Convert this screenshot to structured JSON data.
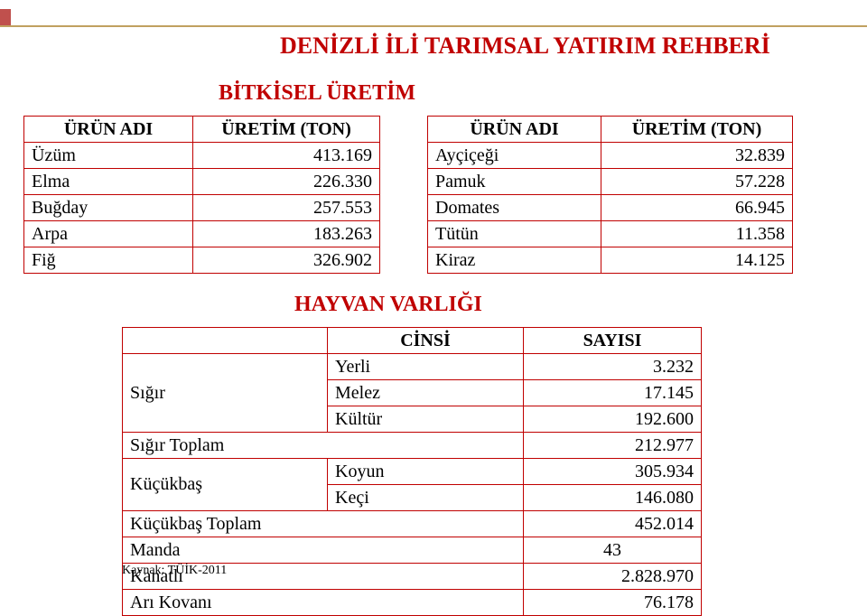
{
  "doc_title": "DENİZLİ İLİ TARIMSAL YATIRIM REHBERİ",
  "subtitle": "BİTKİSEL ÜRETİM",
  "colors": {
    "accent_red": "#c00000",
    "border": "#c00000",
    "stripe": "#c0504d",
    "line": "#c0a060",
    "bg": "#ffffff",
    "text": "#000000"
  },
  "left_table": {
    "headers": [
      "ÜRÜN ADI",
      "ÜRETİM (TON)"
    ],
    "rows": [
      [
        "Üzüm",
        "413.169"
      ],
      [
        "Elma",
        "226.330"
      ],
      [
        "Buğday",
        "257.553"
      ],
      [
        "Arpa",
        "183.263"
      ],
      [
        "Fiğ",
        "326.902"
      ]
    ]
  },
  "right_table": {
    "headers": [
      "ÜRÜN ADI",
      "ÜRETİM (TON)"
    ],
    "rows": [
      [
        "Ayçiçeği",
        "32.839"
      ],
      [
        "Pamuk",
        "57.228"
      ],
      [
        "Domates",
        "66.945"
      ],
      [
        "Tütün",
        "11.358"
      ],
      [
        "Kiraz",
        "14.125"
      ]
    ]
  },
  "mid_title": "HAYVAN VARLIĞI",
  "bottom_table": {
    "header_b": "CİNSİ",
    "header_c": "SAYISI",
    "sigir_label": "Sığır",
    "sigir_rows": [
      [
        "Yerli",
        "3.232"
      ],
      [
        "Melez",
        "17.145"
      ],
      [
        "Kültür",
        "192.600"
      ]
    ],
    "sigir_total_label": "Sığır Toplam",
    "sigir_total_val": "212.977",
    "kucukbas_label": "Küçükbaş",
    "kucukbas_rows": [
      [
        "Koyun",
        "305.934"
      ],
      [
        "Keçi",
        "146.080"
      ]
    ],
    "kucukbas_total_label": "Küçükbaş Toplam",
    "kucukbas_total_val": "452.014",
    "manda_label": "Manda",
    "manda_val": "43",
    "kanatli_label": "Kanatlı",
    "kanatli_val": "2.828.970",
    "ari_label": "Arı Kovanı",
    "ari_val": "76.178"
  },
  "source": "Kaynak: TÜİK-2011"
}
